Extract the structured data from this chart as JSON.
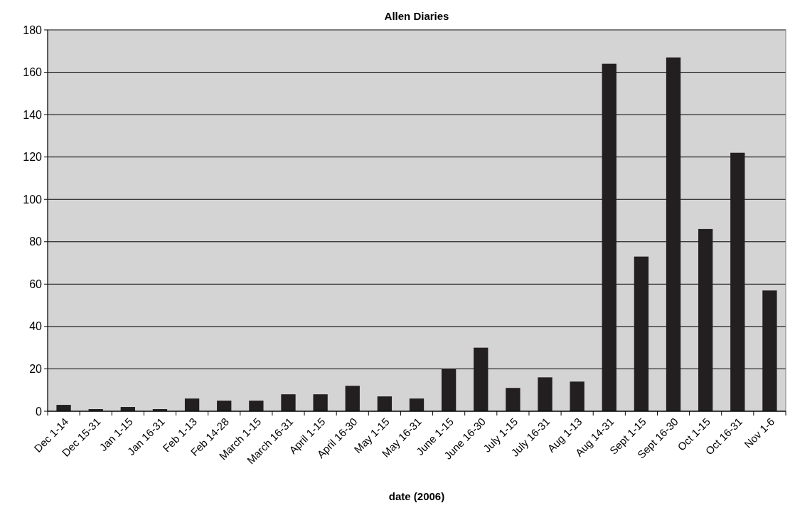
{
  "chart_data": {
    "type": "bar",
    "title": "Allen Diaries",
    "xlabel": "date (2006)",
    "categories": [
      "Dec 1-14",
      "Dec 15-31",
      "Jan 1-15",
      "Jan 16-31",
      "Feb 1-13",
      "Feb 14-28",
      "March 1-15",
      "March 16-31",
      "April 1-15",
      "April 16-30",
      "May 1-15",
      "May 16-31",
      "June 1-15",
      "June 16-30",
      "July 1-15",
      "July 16-31",
      "Aug 1-13",
      "Aug 14-31",
      "Sept 1-15",
      "Sept 16-30",
      "Oct 1-15",
      "Oct 16-31",
      "Nov 1-6"
    ],
    "values": [
      3,
      1,
      2,
      1,
      6,
      5,
      5,
      8,
      8,
      12,
      7,
      6,
      20,
      30,
      11,
      16,
      14,
      164,
      73,
      167,
      86,
      122,
      57
    ],
    "color": "#231f20",
    "ylim": [
      0,
      180
    ],
    "yticks": [
      0,
      20,
      40,
      60,
      80,
      100,
      120,
      140,
      160,
      180
    ],
    "grid": "y"
  }
}
